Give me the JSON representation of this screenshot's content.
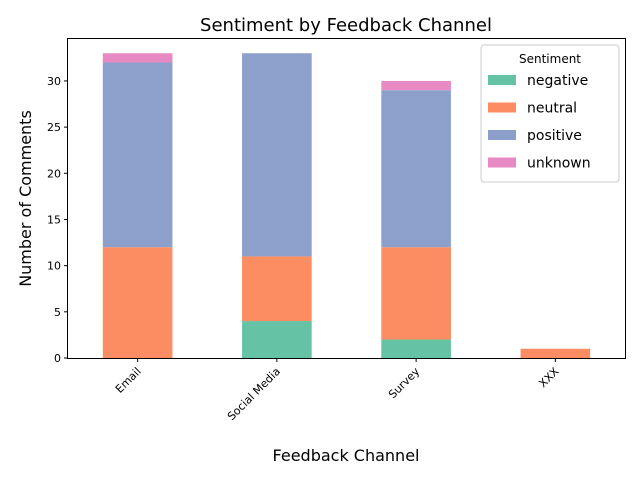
{
  "chart_data": {
    "type": "bar",
    "stacked": true,
    "title": "Sentiment by Feedback Channel",
    "xlabel": "Feedback Channel",
    "ylabel": "Number of Comments",
    "categories": [
      "Email",
      "Social Media",
      "Survey",
      "XXX"
    ],
    "ylim": [
      0,
      34.65
    ],
    "yticks": [
      0,
      5,
      10,
      15,
      20,
      25,
      30
    ],
    "grid": false,
    "legend": {
      "title": "Sentiment",
      "placement": "top-right"
    },
    "series": [
      {
        "name": "negative",
        "color": "#66c2a5",
        "values": [
          0,
          4,
          2,
          0
        ]
      },
      {
        "name": "neutral",
        "color": "#fc8d62",
        "values": [
          12,
          7,
          10,
          1
        ]
      },
      {
        "name": "positive",
        "color": "#8da0cb",
        "values": [
          20,
          22,
          17,
          0
        ]
      },
      {
        "name": "unknown",
        "color": "#e78ac3",
        "values": [
          1,
          0,
          1,
          0
        ]
      }
    ]
  }
}
